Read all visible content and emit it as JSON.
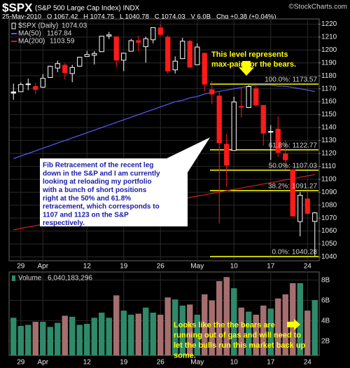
{
  "chart_data": {
    "type": "candlestick",
    "title": "$SPX",
    "subtitle": "(S&P 500 Large Cap Index) INDX",
    "source": "©StockCharts.com",
    "quote_line": "25-May-2010   O 1067.42   H 1074.75   L 1040.78   C 1074.03   V 6.0B   Chg +0.38 (+0.04%)",
    "categories": [
      null,
      "29",
      null,
      null,
      "Apr",
      null,
      null,
      null,
      null,
      null,
      "12",
      null,
      null,
      null,
      null,
      "19",
      null,
      null,
      null,
      null,
      "26",
      null,
      null,
      null,
      null,
      "May",
      null,
      null,
      null,
      null,
      "10",
      null,
      null,
      null,
      null,
      "17",
      null,
      null,
      null,
      null,
      "24",
      null
    ],
    "price": {
      "name": "$SPX (Daily)",
      "up_color": "#ffffff",
      "down_color": "#ff1a1a",
      "open": [
        1167.58,
        1167.71,
        1173.75,
        1171.75,
        1171.23,
        1178.71,
        1186.01,
        1188.23,
        1181.75,
        1187.47,
        1194.94,
        1195.94,
        1198.69,
        1210.77,
        1210.17,
        1192.06,
        1199.04,
        1207.16,
        1202.52,
        1207.87,
        1217.07,
        1209.92,
        1184.59,
        1193.3,
        1206.77,
        1188.58,
        1197.5,
        1169.24,
        1164.38,
        1127.04,
        1122.27,
        1156.39,
        1155.43,
        1170.04,
        1157.19,
        1136.52,
        1138.78,
        1119.57,
        1107.34,
        1067.26,
        1084.78,
        1067.42
      ],
      "high": [
        1173.93,
        1174.85,
        1177.83,
        1174.56,
        1181.43,
        1187.73,
        1191.8,
        1189.6,
        1188.55,
        1194.66,
        1199.2,
        1199.04,
        1210.65,
        1213.92,
        1210.17,
        1197.87,
        1208.58,
        1210.99,
        1210.27,
        1217.28,
        1219.8,
        1211.38,
        1195.05,
        1209.36,
        1207.99,
        1205.13,
        1197.5,
        1175.95,
        1167.58,
        1135.13,
        1163.85,
        1170.48,
        1172.87,
        1173.57,
        1157.19,
        1141.88,
        1148.66,
        1129.63,
        1107.34,
        1090.16,
        1089.95,
        1074.75
      ],
      "low": [
        1161.48,
        1167.71,
        1168.92,
        1165.77,
        1170.69,
        1178.71,
        1182.77,
        1177.25,
        1175.12,
        1187.15,
        1194.71,
        1188.82,
        1198.69,
        1208.5,
        1186.77,
        1183.68,
        1199.04,
        1198.85,
        1190.19,
        1205.1,
        1211.07,
        1181.62,
        1181.81,
        1193.3,
        1186.32,
        1188.58,
        1168.12,
        1158.15,
        1065.79,
        1094.15,
        1122.27,
        1147.71,
        1155.43,
        1156.14,
        1126.14,
        1114.96,
        1117.2,
        1107.34,
        1071.58,
        1055.9,
        1072.7,
        1040.78
      ],
      "close": [
        1166.59,
        1173.22,
        1173.27,
        1169.43,
        1178.1,
        1187.44,
        1189.44,
        1182.45,
        1186.44,
        1194.37,
        1196.48,
        1197.3,
        1210.65,
        1211.67,
        1192.13,
        1197.52,
        1207.17,
        1205.94,
        1208.67,
        1217.28,
        1212.05,
        1183.71,
        1191.36,
        1206.78,
        1186.69,
        1202.26,
        1173.6,
        1165.9,
        1128.15,
        1110.88,
        1159.73,
        1155.79,
        1171.67,
        1157.44,
        1135.68,
        1136.94,
        1120.8,
        1115.05,
        1071.59,
        1087.69,
        1073.65,
        1074.03
      ]
    },
    "moving_averages": [
      {
        "name": "MA(50)",
        "color": "#5a5aff",
        "values": [
          1116,
          1118,
          1120,
          1122,
          1124,
          1126,
          1128,
          1130,
          1132,
          1134,
          1136,
          1138,
          1140,
          1142,
          1144,
          1146,
          1148,
          1150,
          1152,
          1154,
          1156,
          1158,
          1160,
          1161,
          1163,
          1164,
          1166,
          1167,
          1168,
          1169,
          1170,
          1171,
          1172,
          1173,
          1173,
          1173,
          1172,
          1172,
          1171,
          1170,
          1169,
          1167.84
        ]
      },
      {
        "name": "MA(200)",
        "color": "#d42020",
        "values": [
          1061.0,
          1062.0,
          1063.1,
          1064.1,
          1065.2,
          1066.2,
          1067.2,
          1068.3,
          1069.3,
          1070.4,
          1071.4,
          1072.4,
          1073.5,
          1074.5,
          1075.6,
          1076.6,
          1077.6,
          1078.7,
          1079.7,
          1080.8,
          1081.8,
          1082.8,
          1083.9,
          1084.9,
          1086.0,
          1087.0,
          1088.0,
          1089.1,
          1090.1,
          1091.2,
          1092.2,
          1093.2,
          1094.3,
          1095.3,
          1096.4,
          1097.4,
          1098.4,
          1099.5,
          1100.5,
          1101.6,
          1102.6,
          1103.59
        ]
      }
    ],
    "ylim": [
      1037,
      1224
    ],
    "yticks": [
      1040,
      1050,
      1060,
      1070,
      1080,
      1090,
      1100,
      1110,
      1120,
      1130,
      1140,
      1150,
      1160,
      1170,
      1180,
      1190,
      1200,
      1210,
      1220
    ],
    "grid": true,
    "fib_color": "#ffff00",
    "fib_levels": [
      {
        "value": 1173.57,
        "label": "100.0%: 1173.57"
      },
      {
        "value": 1122.77,
        "label": "61.8%: 1122.77"
      },
      {
        "value": 1107.03,
        "label": "50.0%: 1107.03"
      },
      {
        "value": 1091.27,
        "label": "38.2%: 1091.27"
      },
      {
        "value": 1040.28,
        "label": "0.0%: 1040.28"
      }
    ],
    "volume": {
      "name": "Volume",
      "value_label": "6,040,183,296",
      "up_color": "#2f8a6a",
      "down_color": "#a56f6f",
      "values": [
        4.3,
        3.5,
        3.6,
        3.9,
        3.9,
        3.4,
        3.8,
        4.5,
        4.4,
        3.6,
        3.7,
        4.3,
        4.8,
        4.3,
        6.5,
        5.0,
        4.6,
        4.7,
        5.3,
        4.8,
        4.6,
        6.3,
        6.1,
        5.5,
        5.6,
        4.6,
        6.6,
        6.0,
        7.9,
        8.3,
        7.2,
        5.3,
        4.9,
        4.6,
        5.5,
        5.2,
        6.2,
        6.6,
        7.7,
        7.7,
        5.0,
        6.040183296
      ],
      "ylim": [
        0.6,
        8.8
      ],
      "yticks": [
        {
          "value": 2,
          "label": "2B"
        },
        {
          "value": 4,
          "label": "4B"
        },
        {
          "value": 6,
          "label": "6B"
        },
        {
          "value": 8,
          "label": "8B"
        }
      ]
    },
    "annotations": {
      "top_note": [
        "This level represents",
        "max-pain for the bears."
      ],
      "callout": [
        "Fib Retracement of the recent leg",
        "down in the S&P and I am currently",
        "looking at reloading my portfolio",
        "with a bunch of short positions",
        "right at the 50% and 61.8%",
        "retracement, which corresponds to",
        "1107 and 1123 on the S&P",
        "respectively."
      ],
      "volume_note": [
        "Looks like the the bears are",
        "running out of gas and will need to",
        "let the bulls run this market back up",
        "some."
      ]
    }
  }
}
